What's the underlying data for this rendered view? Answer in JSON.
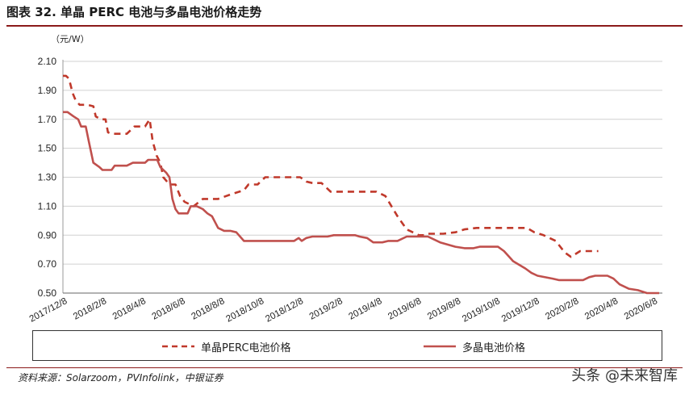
{
  "header": {
    "title": "图表 32. 单晶 PERC 电池与多晶电池价格走势"
  },
  "footer": {
    "source": "资料来源：Solarzoom，PVInfolink，中银证券",
    "watermark": "头条 @未来智库"
  },
  "chart_data": {
    "type": "line",
    "title": "",
    "unit_label": "（元/W）",
    "xlabel": "",
    "ylabel": "",
    "ylim": [
      0.5,
      2.1
    ],
    "yticks": [
      "2.10",
      "1.90",
      "1.70",
      "1.50",
      "1.30",
      "1.10",
      "0.90",
      "0.70",
      "0.50"
    ],
    "xticks": [
      "2017/12/8",
      "2018/2/8",
      "2018/4/8",
      "2018/6/8",
      "2018/8/8",
      "2018/10/8",
      "2018/12/8",
      "2019/2/8",
      "2019/4/8",
      "2019/6/8",
      "2019/8/8",
      "2019/10/8",
      "2019/12/8",
      "2020/2/8",
      "2020/4/8",
      "2020/6/8"
    ],
    "grid": "horizontal",
    "legend_position": "bottom",
    "series": [
      {
        "name": "单晶PERC电池价格",
        "color": "#c0392b",
        "style": "dashed",
        "points": [
          [
            0,
            2.0
          ],
          [
            0.1,
            2.0
          ],
          [
            0.2,
            1.98
          ],
          [
            0.32,
            1.88
          ],
          [
            0.42,
            1.83
          ],
          [
            0.55,
            1.8
          ],
          [
            0.8,
            1.8
          ],
          [
            1.0,
            1.79
          ],
          [
            1.08,
            1.72
          ],
          [
            1.25,
            1.7
          ],
          [
            1.4,
            1.7
          ],
          [
            1.48,
            1.61
          ],
          [
            1.6,
            1.6
          ],
          [
            2.1,
            1.6
          ],
          [
            2.35,
            1.65
          ],
          [
            2.7,
            1.65
          ],
          [
            2.85,
            1.7
          ],
          [
            2.95,
            1.55
          ],
          [
            3.08,
            1.45
          ],
          [
            3.2,
            1.4
          ],
          [
            3.3,
            1.3
          ],
          [
            3.5,
            1.25
          ],
          [
            3.7,
            1.25
          ],
          [
            3.85,
            1.17
          ],
          [
            4.0,
            1.13
          ],
          [
            4.3,
            1.1
          ],
          [
            4.6,
            1.15
          ],
          [
            5.1,
            1.15
          ],
          [
            5.5,
            1.18
          ],
          [
            5.8,
            1.2
          ],
          [
            5.95,
            1.21
          ],
          [
            6.1,
            1.25
          ],
          [
            6.4,
            1.25
          ],
          [
            6.65,
            1.3
          ],
          [
            7.8,
            1.3
          ],
          [
            8.0,
            1.27
          ],
          [
            8.2,
            1.26
          ],
          [
            8.5,
            1.26
          ],
          [
            8.8,
            1.2
          ],
          [
            9.5,
            1.2
          ],
          [
            10.3,
            1.2
          ],
          [
            10.6,
            1.17
          ],
          [
            10.8,
            1.1
          ],
          [
            11.0,
            1.03
          ],
          [
            11.3,
            0.94
          ],
          [
            11.5,
            0.92
          ],
          [
            11.7,
            0.9
          ],
          [
            11.9,
            0.9
          ],
          [
            12.0,
            0.91
          ],
          [
            12.5,
            0.91
          ],
          [
            12.9,
            0.92
          ],
          [
            13.2,
            0.94
          ],
          [
            13.6,
            0.95
          ],
          [
            14.2,
            0.95
          ],
          [
            14.75,
            0.95
          ],
          [
            15.25,
            0.95
          ],
          [
            15.5,
            0.92
          ],
          [
            15.8,
            0.9
          ],
          [
            16.2,
            0.86
          ],
          [
            16.5,
            0.78
          ],
          [
            16.7,
            0.75
          ],
          [
            17.0,
            0.79
          ],
          [
            17.6,
            0.79
          ]
        ]
      },
      {
        "name": "多晶电池价格",
        "color": "#c0504d",
        "style": "solid",
        "points": [
          [
            0,
            1.75
          ],
          [
            0.15,
            1.75
          ],
          [
            0.35,
            1.72
          ],
          [
            0.5,
            1.7
          ],
          [
            0.6,
            1.65
          ],
          [
            0.75,
            1.65
          ],
          [
            0.85,
            1.55
          ],
          [
            1.0,
            1.4
          ],
          [
            1.2,
            1.37
          ],
          [
            1.3,
            1.35
          ],
          [
            1.6,
            1.35
          ],
          [
            1.7,
            1.38
          ],
          [
            2.1,
            1.38
          ],
          [
            2.3,
            1.4
          ],
          [
            2.7,
            1.4
          ],
          [
            2.8,
            1.42
          ],
          [
            3.1,
            1.42
          ],
          [
            3.2,
            1.37
          ],
          [
            3.4,
            1.33
          ],
          [
            3.5,
            1.3
          ],
          [
            3.6,
            1.15
          ],
          [
            3.7,
            1.08
          ],
          [
            3.8,
            1.05
          ],
          [
            4.1,
            1.05
          ],
          [
            4.2,
            1.1
          ],
          [
            4.4,
            1.1
          ],
          [
            4.6,
            1.08
          ],
          [
            4.75,
            1.05
          ],
          [
            4.9,
            1.03
          ],
          [
            5.1,
            0.95
          ],
          [
            5.3,
            0.93
          ],
          [
            5.5,
            0.93
          ],
          [
            5.7,
            0.92
          ],
          [
            5.95,
            0.86
          ],
          [
            6.2,
            0.86
          ],
          [
            7.6,
            0.86
          ],
          [
            7.75,
            0.88
          ],
          [
            7.85,
            0.86
          ],
          [
            8.0,
            0.88
          ],
          [
            8.2,
            0.89
          ],
          [
            8.4,
            0.89
          ],
          [
            8.7,
            0.89
          ],
          [
            8.9,
            0.9
          ],
          [
            9.6,
            0.9
          ],
          [
            9.75,
            0.89
          ],
          [
            10.0,
            0.88
          ],
          [
            10.2,
            0.85
          ],
          [
            10.5,
            0.85
          ],
          [
            10.7,
            0.86
          ],
          [
            11.0,
            0.86
          ],
          [
            11.3,
            0.89
          ],
          [
            12.0,
            0.89
          ],
          [
            12.4,
            0.85
          ],
          [
            12.9,
            0.82
          ],
          [
            13.2,
            0.81
          ],
          [
            13.5,
            0.81
          ],
          [
            13.7,
            0.82
          ],
          [
            14.3,
            0.82
          ],
          [
            14.5,
            0.79
          ],
          [
            14.8,
            0.72
          ],
          [
            15.2,
            0.67
          ],
          [
            15.4,
            0.64
          ],
          [
            15.6,
            0.62
          ],
          [
            16.1,
            0.6
          ],
          [
            16.3,
            0.59
          ],
          [
            16.6,
            0.59
          ],
          [
            17.0,
            0.59
          ],
          [
            17.1,
            0.59
          ],
          [
            17.3,
            0.61
          ],
          [
            17.5,
            0.62
          ],
          [
            17.9,
            0.62
          ],
          [
            18.1,
            0.6
          ],
          [
            18.3,
            0.56
          ],
          [
            18.6,
            0.53
          ],
          [
            18.9,
            0.52
          ],
          [
            19.2,
            0.5
          ],
          [
            19.6,
            0.5
          ]
        ]
      }
    ]
  }
}
